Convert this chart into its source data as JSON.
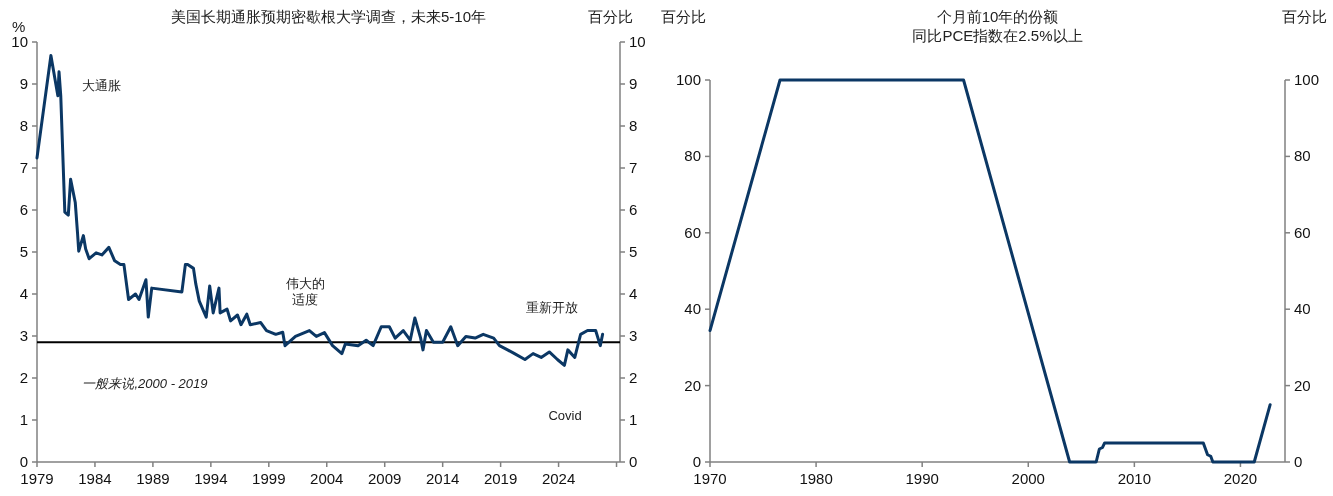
{
  "chart_data": [
    {
      "type": "line",
      "title": "美国长期通胀预期密歇根大学调查，未来5-10年",
      "ylabel": "%",
      "y2label": "百分比",
      "x": [
        1979.0,
        1980.2,
        1980.8,
        1980.9,
        1981.05,
        1981.4,
        1981.7,
        1981.9,
        1982.3,
        1982.5,
        1982.6,
        1983.0,
        1983.2,
        1983.5,
        1984.1,
        1984.6,
        1985.2,
        1985.7,
        1986.2,
        1986.5,
        1986.9,
        1987.5,
        1987.8,
        1988.4,
        1988.6,
        1988.9,
        1991.5,
        1991.8,
        1992.0,
        1992.5,
        1992.7,
        1993.0,
        1993.6,
        1993.9,
        1994.2,
        1994.7,
        1994.8,
        1995.4,
        1995.7,
        1996.3,
        1996.6,
        1997.1,
        1997.4,
        1998.3,
        1998.8,
        1999.6,
        2000.2,
        2000.4,
        2001.3,
        2002.5,
        2003.1,
        2003.8,
        2004.5,
        2005.3,
        2005.6,
        2006.7,
        2007.4,
        2008.0,
        2008.7,
        2009.4,
        2009.9,
        2010.6,
        2011.2,
        2011.6,
        2012.1,
        2012.3,
        2012.6,
        2013.2,
        2014.0,
        2014.7,
        2015.3,
        2016.0,
        2016.8,
        2017.5,
        2018.4,
        2018.9,
        2019.6,
        2020.2,
        2021.1,
        2021.8,
        2022.5,
        2023.2,
        2023.9,
        2024.5,
        2024.8,
        2025.4,
        2025.9,
        2026.5,
        2027.2,
        2027.6,
        2027.8
      ],
      "series": [
        {
          "color": "#0b3764",
          "values": [
            7.24,
            9.68,
            8.72,
            9.29,
            8.72,
            5.95,
            5.88,
            6.73,
            6.18,
            5.44,
            5.02,
            5.39,
            5.07,
            4.84,
            4.98,
            4.93,
            5.11,
            4.79,
            4.7,
            4.7,
            3.87,
            4.0,
            3.87,
            4.34,
            3.45,
            4.14,
            4.05,
            4.7,
            4.7,
            4.61,
            4.24,
            3.83,
            3.45,
            4.19,
            3.55,
            4.14,
            3.55,
            3.64,
            3.36,
            3.5,
            3.27,
            3.52,
            3.27,
            3.32,
            3.13,
            3.04,
            3.09,
            2.77,
            2.99,
            3.13,
            2.99,
            3.08,
            2.77,
            2.58,
            2.81,
            2.77,
            2.9,
            2.77,
            3.22,
            3.22,
            2.95,
            3.13,
            2.9,
            3.43,
            2.95,
            2.67,
            3.13,
            2.85,
            2.85,
            3.22,
            2.77,
            2.99,
            2.95,
            3.04,
            2.95,
            2.77,
            2.67,
            2.58,
            2.44,
            2.58,
            2.49,
            2.62,
            2.44,
            2.3,
            2.67,
            2.49,
            3.04,
            3.13,
            3.13,
            2.77,
            3.04
          ]
        }
      ],
      "xlim": [
        1979,
        2029.3
      ],
      "xticks": [
        1979,
        1984,
        1989,
        1994,
        1999,
        2004,
        2009,
        2014,
        2019,
        2024,
        {
          "value": 2029,
          "label": null
        }
      ],
      "ylim": [
        0,
        10
      ],
      "yticks": [
        0,
        1,
        2,
        3,
        4,
        5,
        6,
        7,
        8,
        9,
        10
      ],
      "y2lim": [
        0,
        10
      ],
      "y2ticks": [
        0,
        1,
        2,
        3,
        4,
        5,
        6,
        7,
        8,
        9,
        10
      ],
      "ref_lines": [
        {
          "axis": "y",
          "value": 2.85,
          "color": "#000000"
        }
      ],
      "annotations": [
        "大通胀",
        "伟大的适度",
        "重新开放",
        "Covid",
        "一般来说,2000 - 2019"
      ],
      "grid": false
    },
    {
      "type": "line",
      "title": "个月前10年的份额同比PCE指数在2.5%以上",
      "ylabel": "百分比",
      "y2label": "百分比",
      "x": [
        1970.0,
        1976.6,
        1993.9,
        2003.9,
        2006.4,
        2006.7,
        2007.0,
        2007.2,
        2016.5,
        2016.9,
        2017.2,
        2017.4,
        2021.3,
        2022.8
      ],
      "series": [
        {
          "color": "#0b3764",
          "values": [
            34.4,
            100,
            100,
            0,
            0,
            3.4,
            3.8,
            5.0,
            5.0,
            1.9,
            1.5,
            0,
            0,
            15.0
          ]
        }
      ],
      "xlim": [
        1970,
        2024.2
      ],
      "xticks": [
        1970,
        1980,
        1990,
        2000,
        2010,
        2020
      ],
      "ylim": [
        0,
        100
      ],
      "yticks": [
        0,
        20,
        40,
        60,
        80,
        100
      ],
      "y2lim": [
        0,
        100
      ],
      "y2ticks": [
        0,
        20,
        40,
        60,
        80,
        100
      ],
      "grid": false
    }
  ]
}
